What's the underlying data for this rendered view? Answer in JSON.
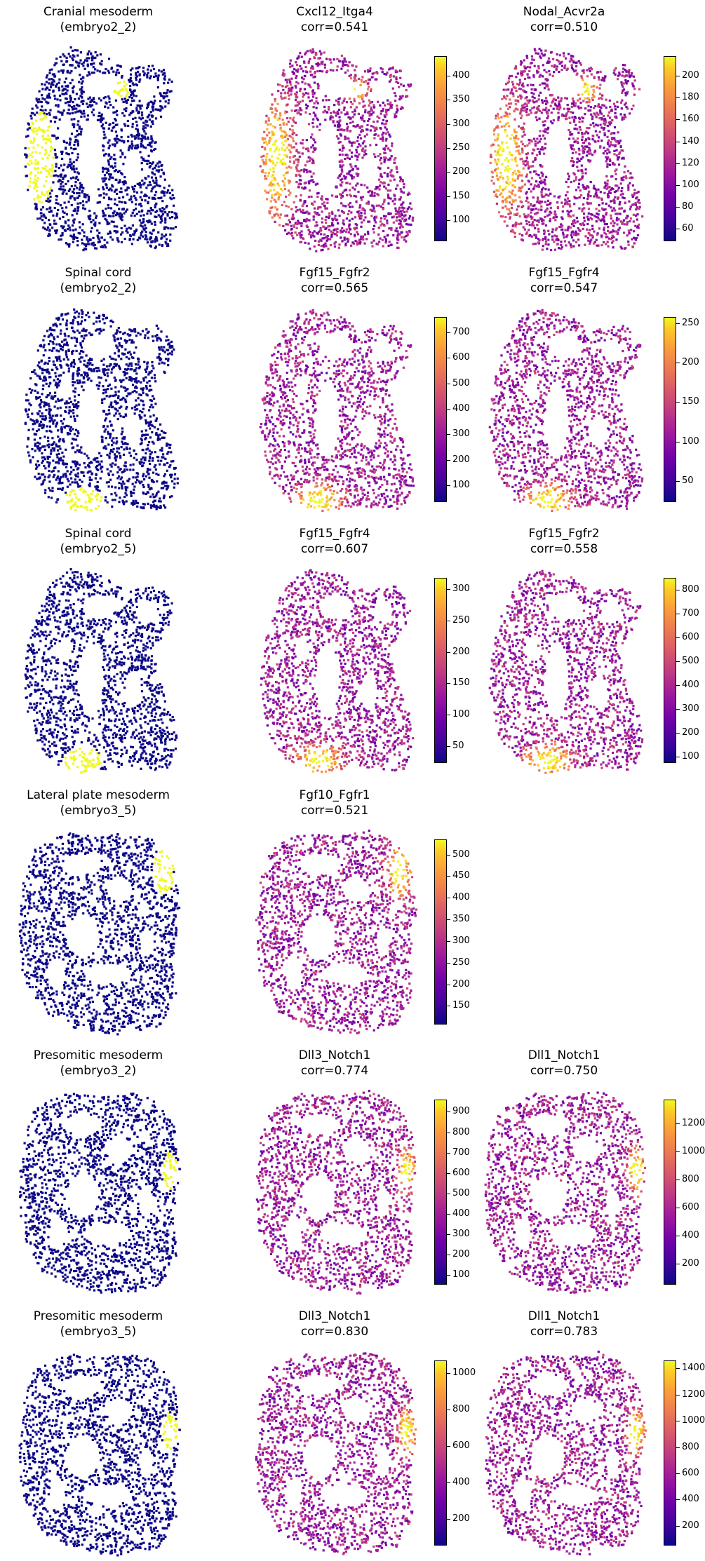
{
  "colors": {
    "low": "#0d0887",
    "highlight": "#f0f921",
    "colormap": "plasma"
  },
  "chart_data": [
    {
      "type": "scatter",
      "row": 0,
      "col": 0,
      "title_line1": "Cranial mesoderm",
      "title_line2": "(embryo2_2)",
      "shape": "A",
      "highlight": "left-strip",
      "binary": true
    },
    {
      "type": "scatter",
      "row": 0,
      "col": 1,
      "title_line1": "Cxcl12_Itga4",
      "title_line2": "corr=0.541",
      "shape": "A",
      "highlight": "left-strip",
      "colorbar_ticks": [
        "400",
        "350",
        "300",
        "250",
        "200",
        "150",
        "100"
      ],
      "colorbar_range": [
        60,
        440
      ]
    },
    {
      "type": "scatter",
      "row": 0,
      "col": 2,
      "title_line1": "Nodal_Acvr2a",
      "title_line2": "corr=0.510",
      "shape": "A",
      "highlight": "left-strip",
      "colorbar_ticks": [
        "200",
        "180",
        "160",
        "140",
        "120",
        "100",
        "80",
        "60"
      ],
      "colorbar_range": [
        50,
        218
      ]
    },
    {
      "type": "scatter",
      "row": 1,
      "col": 0,
      "title_line1": "Spinal cord",
      "title_line2": "(embryo2_2)",
      "shape": "A",
      "highlight": "bottom-left",
      "binary": true
    },
    {
      "type": "scatter",
      "row": 1,
      "col": 1,
      "title_line1": "Fgf15_Fgfr2",
      "title_line2": "corr=0.565",
      "shape": "A",
      "highlight": "bottom-left",
      "colorbar_ticks": [
        "700",
        "600",
        "500",
        "400",
        "300",
        "200",
        "100"
      ],
      "colorbar_range": [
        40,
        760
      ]
    },
    {
      "type": "scatter",
      "row": 1,
      "col": 2,
      "title_line1": "Fgf15_Fgfr4",
      "title_line2": "corr=0.547",
      "shape": "A",
      "highlight": "bottom-left",
      "colorbar_ticks": [
        "250",
        "200",
        "150",
        "100",
        "50"
      ],
      "colorbar_range": [
        25,
        258
      ]
    },
    {
      "type": "scatter",
      "row": 2,
      "col": 0,
      "title_line1": "Spinal cord",
      "title_line2": "(embryo2_5)",
      "shape": "A",
      "highlight": "bottom-left",
      "binary": true
    },
    {
      "type": "scatter",
      "row": 2,
      "col": 1,
      "title_line1": "Fgf15_Fgfr4",
      "title_line2": "corr=0.607",
      "shape": "A",
      "highlight": "bottom-left",
      "colorbar_ticks": [
        "300",
        "250",
        "200",
        "150",
        "100",
        "50"
      ],
      "colorbar_range": [
        25,
        318
      ]
    },
    {
      "type": "scatter",
      "row": 2,
      "col": 2,
      "title_line1": "Fgf15_Fgfr2",
      "title_line2": "corr=0.558",
      "shape": "A",
      "highlight": "bottom-left",
      "colorbar_ticks": [
        "800",
        "700",
        "600",
        "500",
        "400",
        "300",
        "200",
        "100"
      ],
      "colorbar_range": [
        80,
        850
      ]
    },
    {
      "type": "scatter",
      "row": 3,
      "col": 0,
      "title_line1": "Lateral plate mesoderm",
      "title_line2": "(embryo3_5)",
      "shape": "B",
      "highlight": "top-right",
      "binary": true
    },
    {
      "type": "scatter",
      "row": 3,
      "col": 1,
      "title_line1": "Fgf10_Fgfr1",
      "title_line2": "corr=0.521",
      "shape": "B",
      "highlight": "top-right",
      "colorbar_ticks": [
        "500",
        "450",
        "400",
        "350",
        "300",
        "250",
        "200",
        "150"
      ],
      "colorbar_range": [
        110,
        535
      ]
    },
    {
      "type": "scatter",
      "row": 4,
      "col": 0,
      "title_line1": "Presomitic mesoderm",
      "title_line2": "(embryo3_2)",
      "shape": "B",
      "highlight": "right-edge",
      "binary": true
    },
    {
      "type": "scatter",
      "row": 4,
      "col": 1,
      "title_line1": "Dll3_Notch1",
      "title_line2": "corr=0.774",
      "shape": "B",
      "highlight": "right-edge",
      "colorbar_ticks": [
        "900",
        "800",
        "700",
        "600",
        "500",
        "400",
        "300",
        "200",
        "100"
      ],
      "colorbar_range": [
        60,
        960
      ]
    },
    {
      "type": "scatter",
      "row": 4,
      "col": 2,
      "title_line1": "Dll1_Notch1",
      "title_line2": "corr=0.750",
      "shape": "B",
      "highlight": "right-edge",
      "colorbar_ticks": [
        "1200",
        "1000",
        "800",
        "600",
        "400",
        "200"
      ],
      "colorbar_range": [
        60,
        1370
      ]
    },
    {
      "type": "scatter",
      "row": 5,
      "col": 0,
      "title_line1": "Presomitic mesoderm",
      "title_line2": "(embryo3_5)",
      "shape": "B",
      "highlight": "right-edge",
      "binary": true
    },
    {
      "type": "scatter",
      "row": 5,
      "col": 1,
      "title_line1": "Dll3_Notch1",
      "title_line2": "corr=0.830",
      "shape": "B",
      "highlight": "right-edge",
      "colorbar_ticks": [
        "1000",
        "800",
        "600",
        "400",
        "200"
      ],
      "colorbar_range": [
        60,
        1070
      ]
    },
    {
      "type": "scatter",
      "row": 5,
      "col": 2,
      "title_line1": "Dll1_Notch1",
      "title_line2": "corr=0.783",
      "shape": "B",
      "highlight": "right-edge",
      "colorbar_ticks": [
        "1400",
        "1200",
        "1000",
        "800",
        "600",
        "400",
        "200"
      ],
      "colorbar_range": [
        60,
        1460
      ]
    }
  ]
}
